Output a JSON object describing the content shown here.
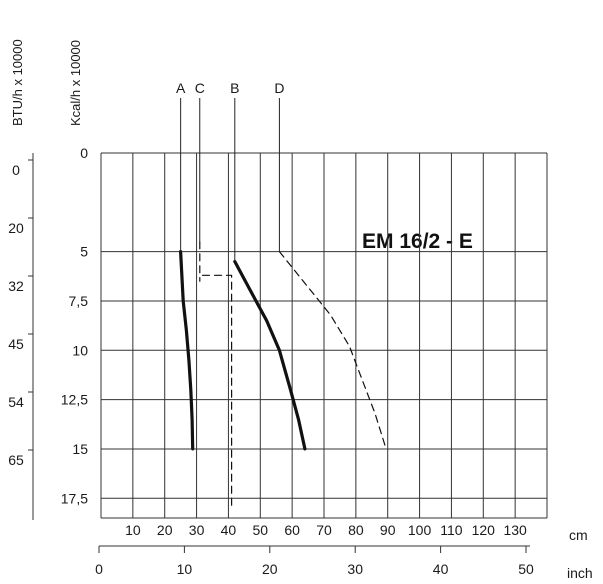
{
  "chart_data": {
    "type": "line",
    "title": "EM 16/2 - E",
    "left_axes": [
      {
        "label": "BTU/h x 10000",
        "ticks": [
          "0",
          "20",
          "32",
          "45",
          "54",
          "65"
        ]
      },
      {
        "label": "Kcal/h x 10000",
        "ticks": [
          "0",
          "5",
          "7,5",
          "10",
          "12,5",
          "15",
          "17,5"
        ]
      }
    ],
    "bottom_axes": [
      {
        "unit": "cm",
        "ticks": [
          "10",
          "20",
          "30",
          "40",
          "50",
          "60",
          "70",
          "80",
          "90",
          "100",
          "110",
          "120",
          "130"
        ]
      },
      {
        "unit": "inch",
        "ticks": [
          "0",
          "10",
          "20",
          "30",
          "40",
          "50"
        ]
      }
    ],
    "x_unit": "cm",
    "y_unit": "Kcal/h x 10000",
    "xlim": [
      0,
      140
    ],
    "ylim": [
      0,
      18.5
    ],
    "y_inverted": true,
    "grid": true,
    "series": [
      {
        "name": "A",
        "style": "solid-bold",
        "x": [
          25,
          25.8,
          26.8,
          27.6,
          28.2,
          28.6,
          28.8
        ],
        "y": [
          5,
          7.5,
          9,
          10.5,
          12,
          13.5,
          15
        ]
      },
      {
        "name": "C",
        "style": "dashed",
        "x": [
          31,
          31,
          31,
          37,
          41,
          41
        ],
        "y": [
          4.5,
          6.5,
          6.2,
          6.2,
          6.2,
          18
        ]
      },
      {
        "name": "B",
        "style": "solid-bold",
        "x": [
          42,
          47,
          52,
          56,
          59.5,
          62,
          64
        ],
        "y": [
          5.5,
          7,
          8.5,
          10,
          12,
          13.5,
          15
        ]
      },
      {
        "name": "D",
        "style": "dashed",
        "x": [
          56,
          65,
          72,
          78,
          82,
          86,
          89.5
        ],
        "y": [
          5,
          6.8,
          8.2,
          9.8,
          11.5,
          13.2,
          15
        ]
      }
    ]
  }
}
